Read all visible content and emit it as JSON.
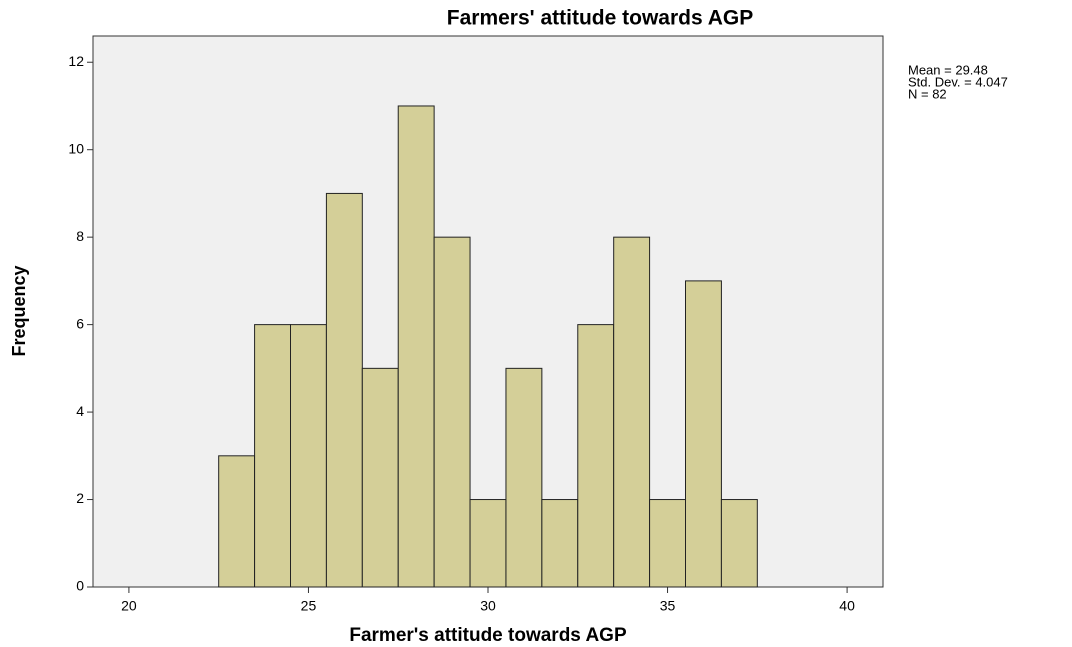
{
  "chart_data": {
    "type": "histogram",
    "title": "Farmers' attitude towards AGP",
    "x_label": "Farmer's attitude towards AGP",
    "y_label": "Frequency",
    "stats": [
      "Mean = 29.48",
      "Std. Dev. = 4.047",
      "N = 82"
    ],
    "bins": [
      22.5,
      23.5,
      24.5,
      25.5,
      26.5,
      27.5,
      28.5,
      29.5,
      30.5,
      31.5,
      32.5,
      33.5,
      34.5,
      35.5,
      36.5,
      37.5
    ],
    "counts": [
      3,
      6,
      6,
      9,
      5,
      11,
      8,
      2,
      5,
      2,
      6,
      8,
      2,
      7,
      2
    ],
    "color": "#d4cf98",
    "background": "#f0f0f0",
    "xlim": [
      19,
      41
    ],
    "xticks": [
      20,
      25,
      30,
      35,
      40
    ],
    "ylim": [
      0,
      12.6
    ],
    "yticks": [
      0,
      2,
      4,
      6,
      8,
      10,
      12
    ]
  }
}
